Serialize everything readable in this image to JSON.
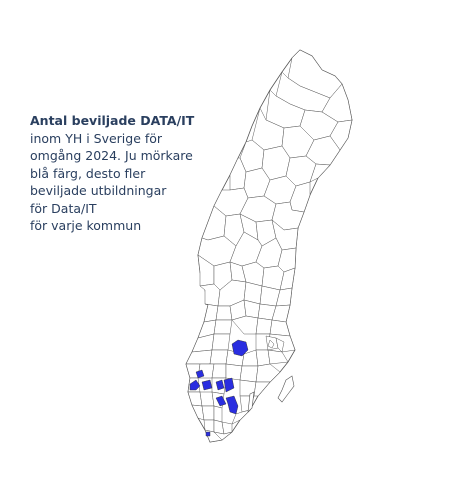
{
  "title": {
    "bold": "Antal beviljade DATA/IT",
    "lines": [
      "inom YH i Sverige för",
      "omgång 2024. Ju mörkare",
      "blå färg, desto fler",
      "beviljade utbildningar",
      "för Data/IT",
      "för varje kommun"
    ]
  },
  "colors": {
    "fill_max": "#2a2ee0",
    "fill_zero": "#ffffff",
    "border": "#4a4a4a",
    "title": "#2a3f5f"
  }
}
